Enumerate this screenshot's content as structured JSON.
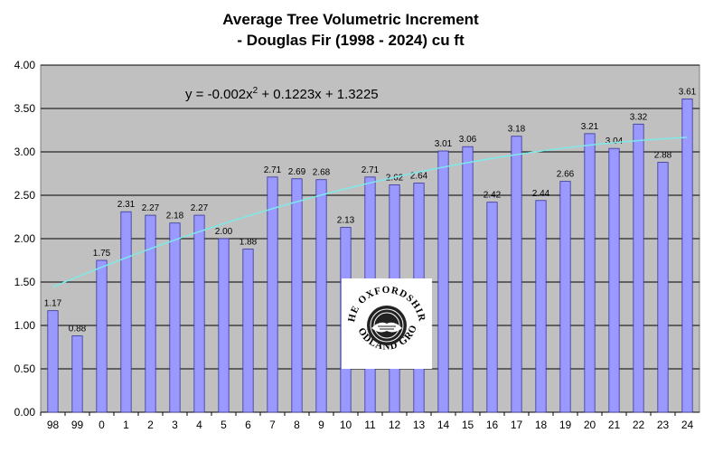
{
  "chart_data": {
    "type": "bar",
    "title": [
      "Average Tree Volumetric Increment",
      "- Douglas Fir (1998 - 2024) cu ft"
    ],
    "xlabel": "",
    "ylabel": "",
    "categories": [
      "98",
      "99",
      "0",
      "1",
      "2",
      "3",
      "4",
      "5",
      "6",
      "7",
      "8",
      "9",
      "10",
      "11",
      "12",
      "13",
      "14",
      "15",
      "16",
      "17",
      "18",
      "19",
      "20",
      "21",
      "22",
      "23",
      "24"
    ],
    "values": [
      1.17,
      0.88,
      1.75,
      2.31,
      2.27,
      2.18,
      2.27,
      2.0,
      1.88,
      2.71,
      2.69,
      2.68,
      2.13,
      2.71,
      2.62,
      2.64,
      3.01,
      3.06,
      2.42,
      3.18,
      2.44,
      2.66,
      3.21,
      3.04,
      3.32,
      2.88,
      3.61
    ],
    "data_labels": [
      "1.17",
      "0.88",
      "1.75",
      "2.31",
      "2.27",
      "2.18",
      "2.27",
      "2.00",
      "1.88",
      "2.71",
      "2.69",
      "2.68",
      "2.13",
      "2.71",
      "2.62",
      "2.64",
      "3.01",
      "3.06",
      "2.42",
      "3.18",
      "2.44",
      "2.66",
      "3.21",
      "3.04",
      "3.32",
      "2.88",
      "3.61"
    ],
    "ylim": [
      0,
      4
    ],
    "yticks": [
      "0.00",
      "0.50",
      "1.00",
      "1.50",
      "2.00",
      "2.50",
      "3.00",
      "3.50",
      "4.00"
    ],
    "grid": true,
    "trendline": {
      "type": "polynomial",
      "coefficients": [
        -0.002,
        0.1223,
        1.3225
      ],
      "equation_text_main": "y = -0.002x",
      "equation_text_sup": "2",
      "equation_text_rest": " + 0.1223x + 1.3225"
    },
    "logo_text_top": "THE OXFORDSHIRE",
    "logo_text_bottom": "WOODLAND GROUP"
  },
  "colors": {
    "plot_bg": "#c0c0c0",
    "bar_fill": "#9999ff",
    "bar_stroke": "#333399",
    "trendline": "#7fe8e8",
    "gridline": "#000000"
  }
}
